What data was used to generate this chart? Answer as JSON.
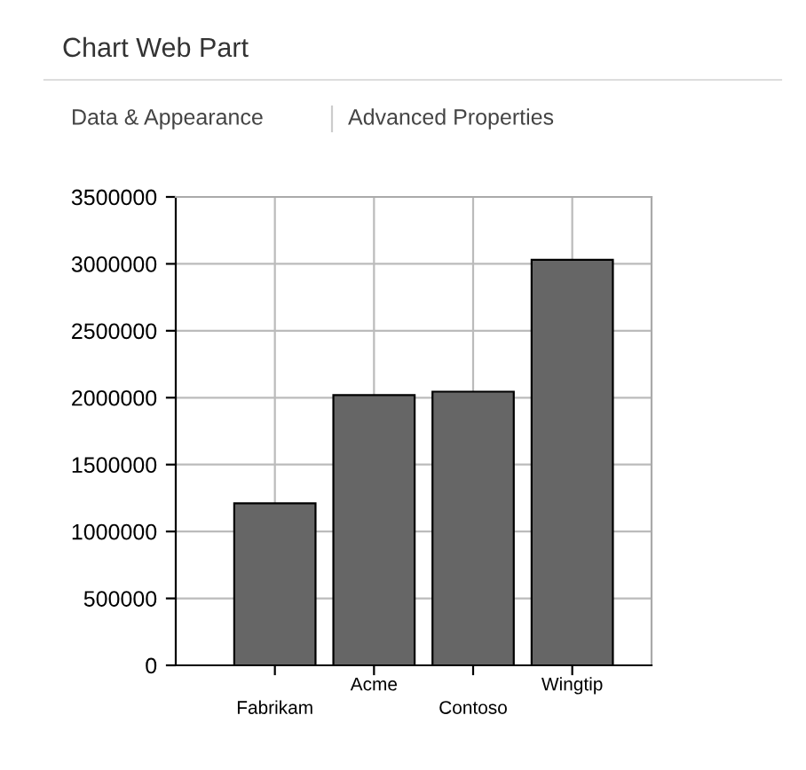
{
  "chart_data": {
    "type": "bar",
    "title": "Chart Web Part",
    "annotations": [
      "Data & Appearance",
      "Advanced Properties"
    ],
    "categories": [
      "Fabrikam",
      "Acme",
      "Contoso",
      "Wingtip"
    ],
    "values": [
      1210000,
      2020000,
      2045000,
      3030000
    ],
    "color": "#666666",
    "ylim": [
      0,
      3500000
    ],
    "yticks": [
      0,
      500000,
      1000000,
      1500000,
      2000000,
      2500000,
      3000000,
      3500000
    ],
    "grid": true
  }
}
